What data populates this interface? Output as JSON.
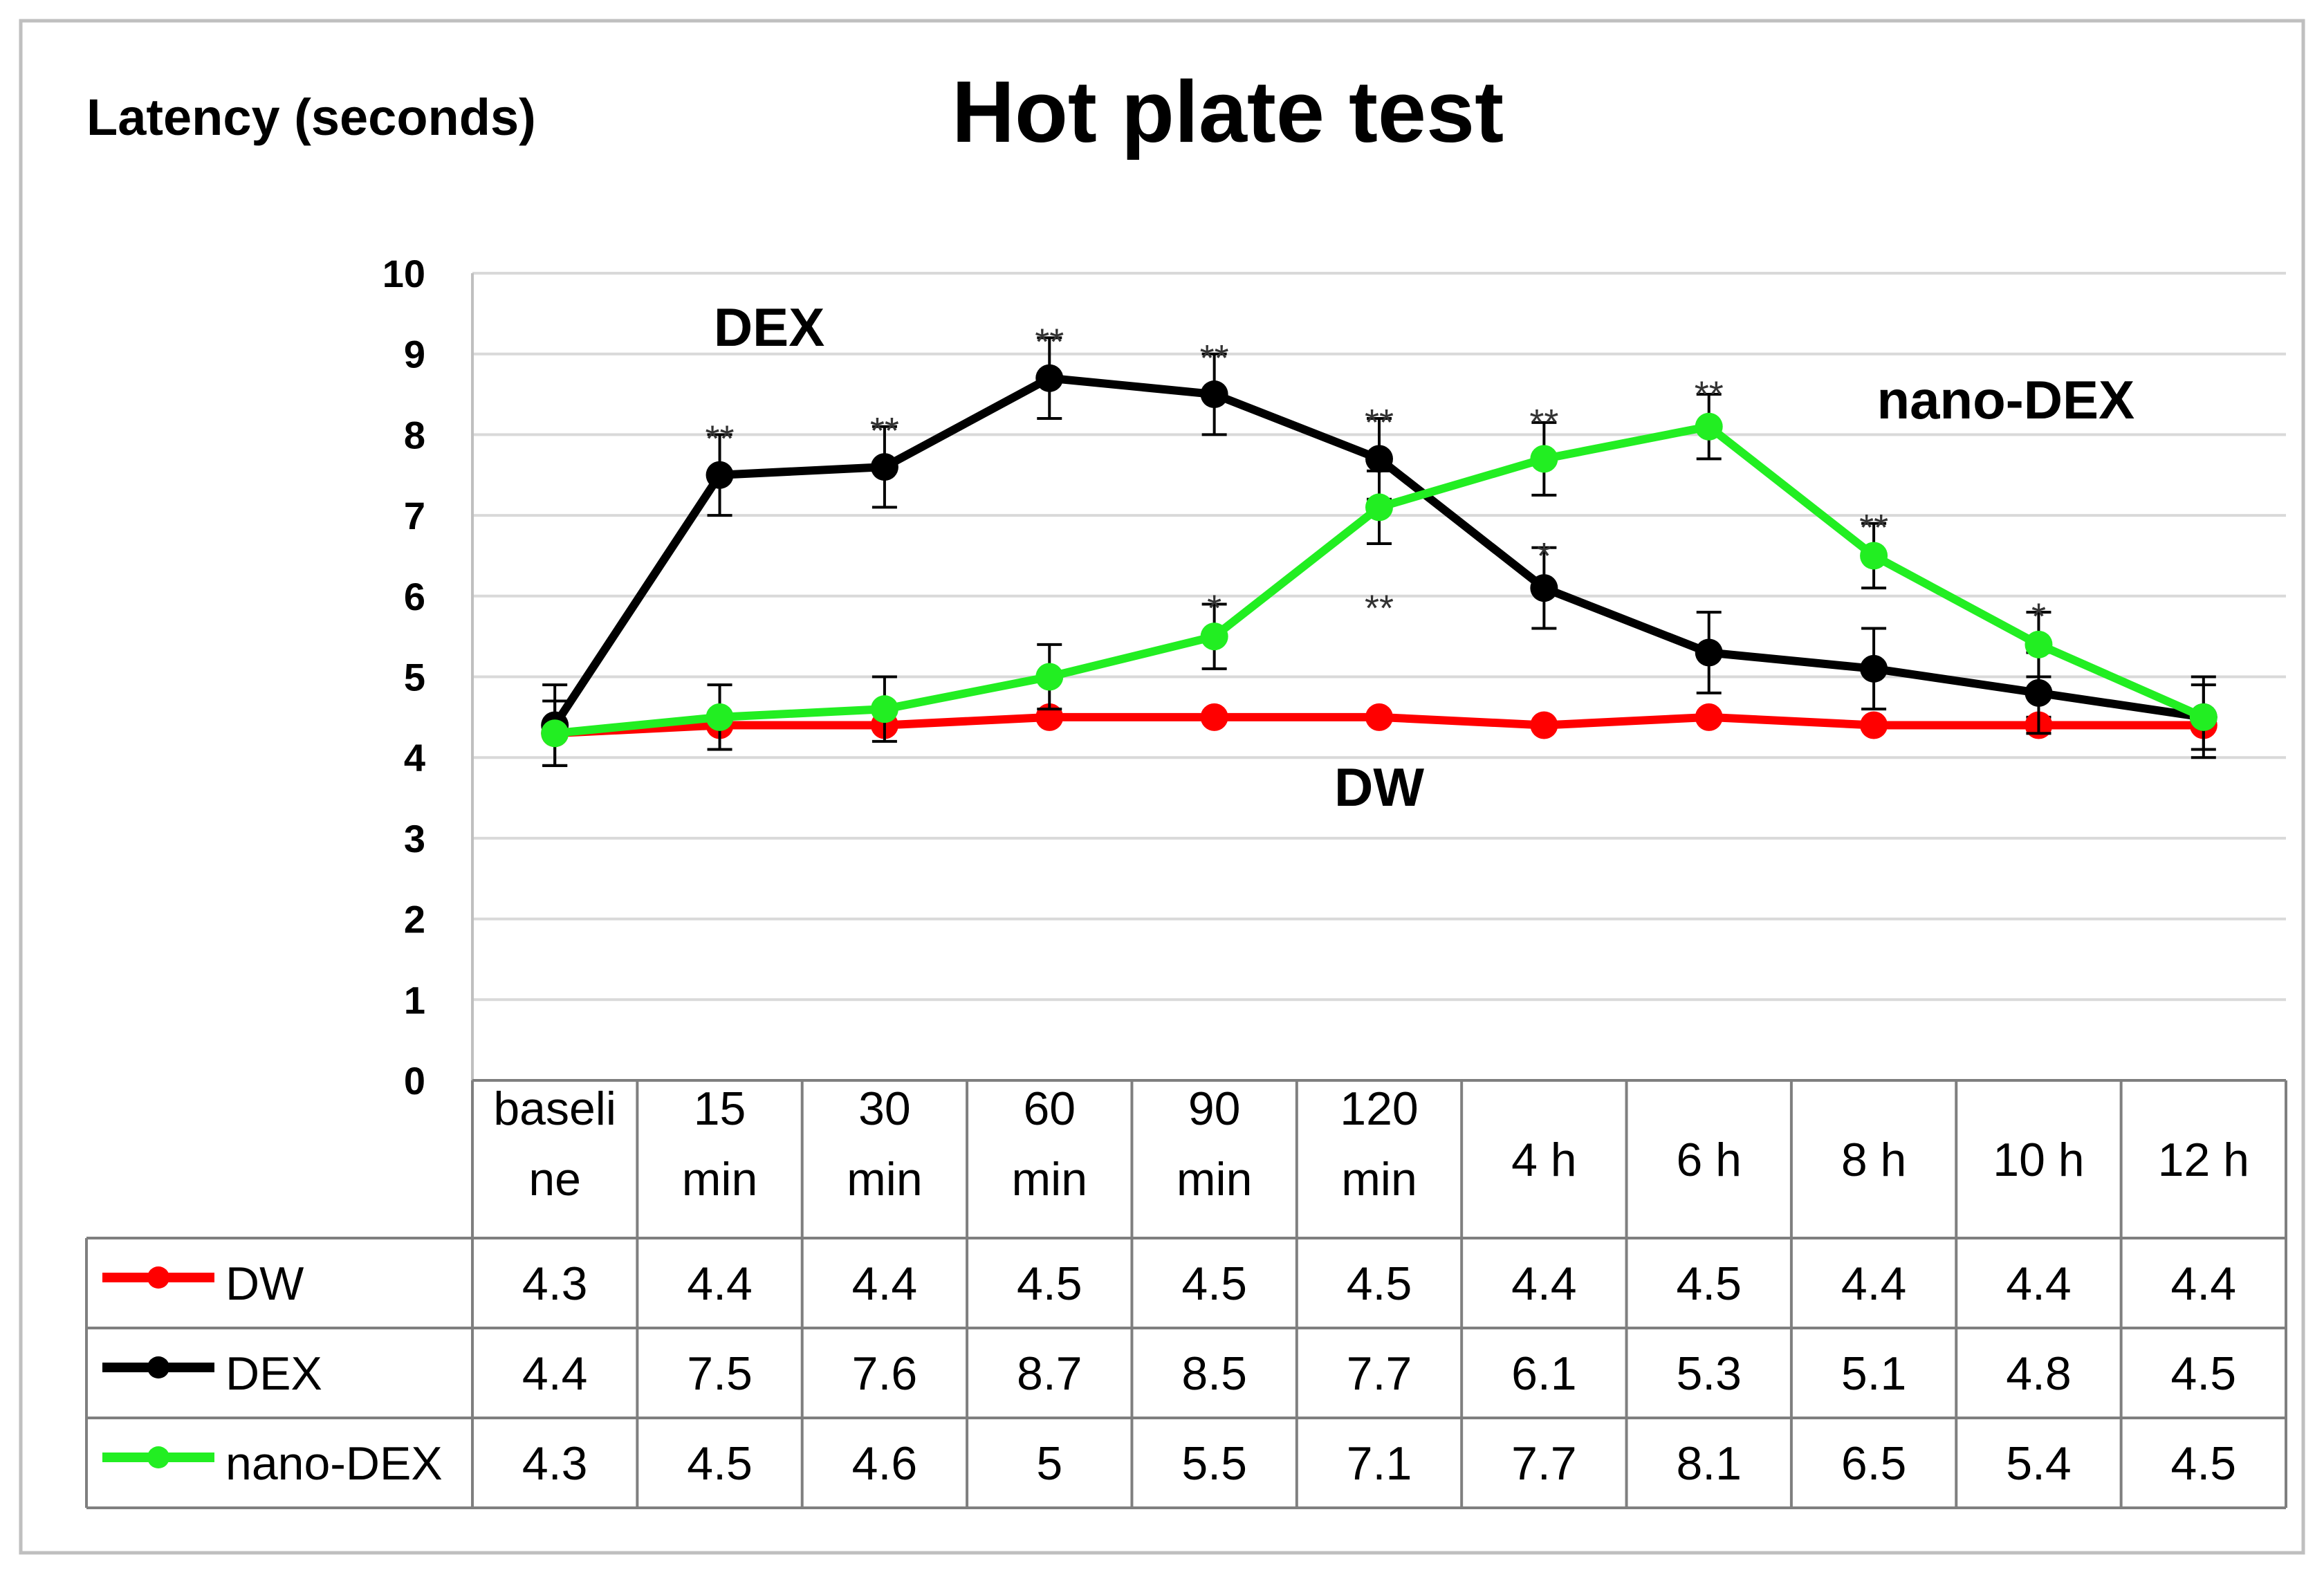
{
  "chart_data": {
    "type": "line",
    "title": "Hot plate test",
    "ylabel": "Latency (seconds)",
    "xlabel": "",
    "ylim": [
      0,
      10
    ],
    "yticks": [
      0,
      1,
      2,
      3,
      4,
      5,
      6,
      7,
      8,
      9,
      10
    ],
    "grid": true,
    "categories": [
      [
        "baseli",
        "ne"
      ],
      [
        "15",
        "min"
      ],
      [
        "30",
        "min"
      ],
      [
        "60",
        "min"
      ],
      [
        "90",
        "min"
      ],
      [
        "120",
        "min"
      ],
      [
        "4 h"
      ],
      [
        "6 h"
      ],
      [
        "8 h"
      ],
      [
        "10 h"
      ],
      [
        "12 h"
      ]
    ],
    "series": [
      {
        "name": "DW",
        "color": "#ff0000",
        "values": [
          4.3,
          4.4,
          4.4,
          4.5,
          4.5,
          4.5,
          4.4,
          4.5,
          4.4,
          4.4,
          4.4
        ],
        "labels": [
          "4.3",
          "4.4",
          "4.4",
          "4.5",
          "4.5",
          "4.5",
          "4.4",
          "4.5",
          "4.4",
          "4.4",
          "4.4"
        ],
        "errors": [
          0,
          0,
          0,
          0,
          0,
          0,
          0,
          0,
          0,
          0.1,
          0
        ]
      },
      {
        "name": "DEX",
        "color": "#000000",
        "values": [
          4.4,
          7.5,
          7.6,
          8.7,
          8.5,
          7.7,
          6.1,
          5.3,
          5.1,
          4.8,
          4.5
        ],
        "labels": [
          "4.4",
          "7.5",
          "7.6",
          "8.7",
          "8.5",
          "7.7",
          "6.1",
          "5.3",
          "5.1",
          "4.8",
          "4.5"
        ],
        "errors": [
          0.5,
          0.5,
          0.5,
          0.5,
          0.5,
          0.5,
          0.5,
          0.5,
          0.5,
          0.5,
          0.5
        ]
      },
      {
        "name": "nano-DEX",
        "color": "#22ee22",
        "values": [
          4.3,
          4.5,
          4.6,
          5,
          5.5,
          7.1,
          7.7,
          8.1,
          6.5,
          5.4,
          4.5
        ],
        "labels": [
          "4.3",
          "4.5",
          "4.6",
          "5",
          "5.5",
          "7.1",
          "7.7",
          "8.1",
          "6.5",
          "5.4",
          "4.5"
        ],
        "errors": [
          0.4,
          0.4,
          0.4,
          0.4,
          0.4,
          0.45,
          0.45,
          0.4,
          0.4,
          0.4,
          0.4
        ]
      }
    ],
    "annotations": [
      {
        "text": "DEX",
        "category": 1.3,
        "y": 9.1
      },
      {
        "text": "nano-DEX",
        "category": 8.8,
        "y": 8.2
      },
      {
        "text": "DW",
        "category": 5.0,
        "y": 3.4
      }
    ],
    "significance": [
      {
        "text": "**",
        "category": 1,
        "y": 8.05
      },
      {
        "text": "**",
        "category": 2,
        "y": 8.15
      },
      {
        "text": "**",
        "category": 3,
        "y": 9.25
      },
      {
        "text": "**",
        "category": 4,
        "y": 9.05
      },
      {
        "text": "**",
        "category": 5,
        "y": 8.25
      },
      {
        "text": "*",
        "category": 4,
        "y": 5.95
      },
      {
        "text": "**",
        "category": 5,
        "y": 5.95
      },
      {
        "text": "**",
        "category": 6,
        "y": 8.25
      },
      {
        "text": "*",
        "category": 6,
        "y": 6.6
      },
      {
        "text": "**",
        "category": 7,
        "y": 8.6
      },
      {
        "text": "**",
        "category": 8,
        "y": 6.95
      },
      {
        "text": "*",
        "category": 9,
        "y": 5.85
      }
    ]
  }
}
